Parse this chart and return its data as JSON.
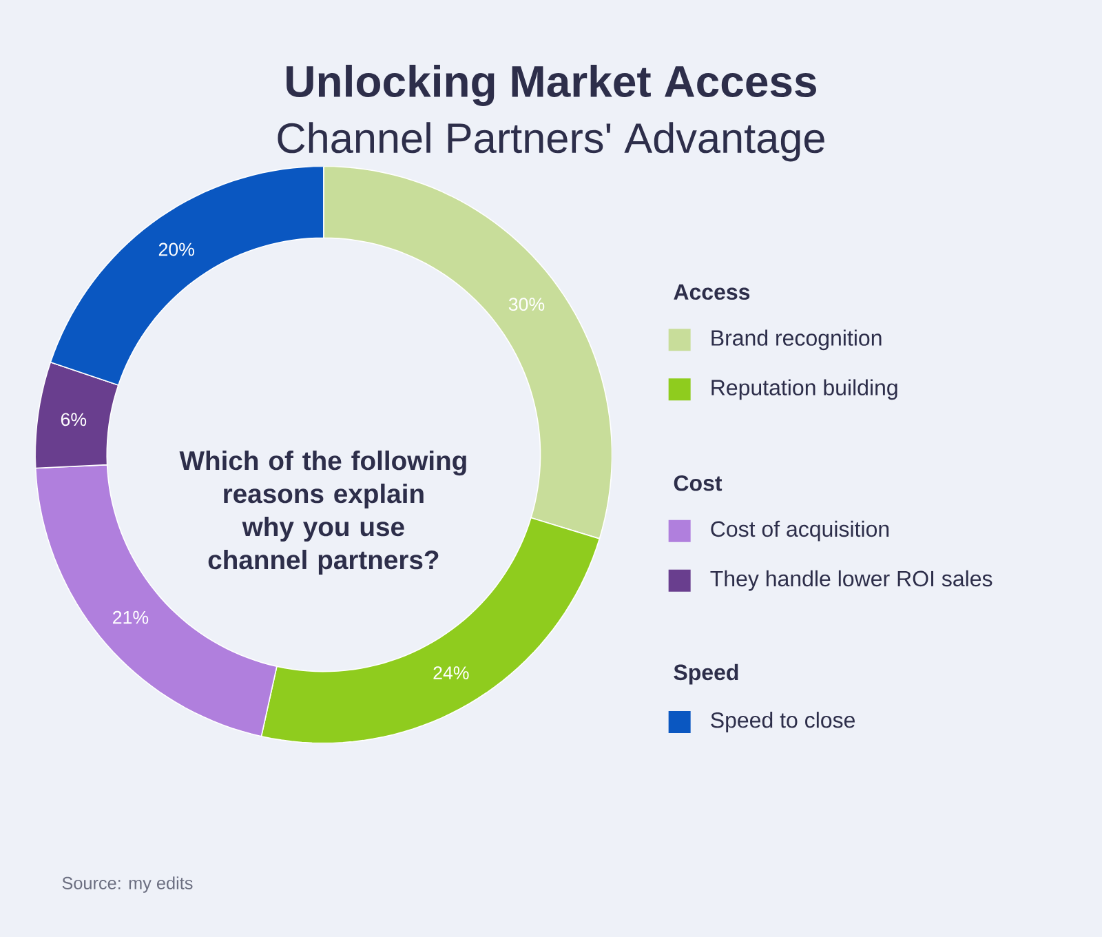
{
  "chart_data": {
    "type": "donut",
    "title": "Unlocking Market Access",
    "subtitle": "Channel Partners' Advantage",
    "categories": [
      "Brand recognition",
      "Reputation building",
      "Cost of acquisition",
      "They handle lower ROI sales",
      "Speed to close"
    ],
    "values": [
      30,
      24,
      21,
      6,
      20
    ],
    "colors": [
      "#c8dd9a",
      "#8fcc1e",
      "#b07fdd",
      "#693e8e",
      "#0a57c1"
    ],
    "value_labels": [
      "30%",
      "24%",
      "21%",
      "6%",
      "20%"
    ],
    "legend": "right",
    "annotations": [
      "Which of the following reasons explain why you use channel partners?",
      "Access",
      "Cost",
      "Speed",
      "Source: my edits"
    ]
  }
}
